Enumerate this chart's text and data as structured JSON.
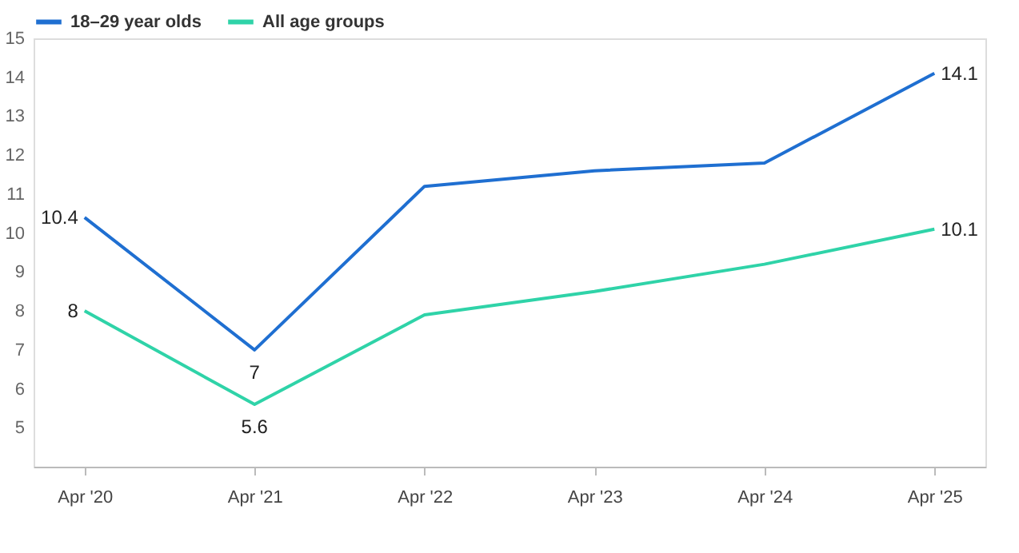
{
  "chart_data": {
    "type": "line",
    "categories": [
      "Apr '20",
      "Apr '21",
      "Apr '22",
      "Apr '23",
      "Apr '24",
      "Apr '25"
    ],
    "series": [
      {
        "name": "18–29 year olds",
        "color": "#1f6fd1",
        "values": [
          10.4,
          7,
          11.2,
          11.6,
          11.8,
          14.1
        ],
        "value_labels": [
          "10.4",
          "7",
          null,
          null,
          null,
          "14.1"
        ]
      },
      {
        "name": "All age groups",
        "color": "#2fd3a8",
        "values": [
          8,
          5.6,
          7.9,
          8.5,
          9.2,
          10.1
        ],
        "value_labels": [
          "8",
          "5.6",
          null,
          null,
          null,
          "10.1"
        ]
      }
    ],
    "ylim": [
      4,
      15
    ],
    "yticks": [
      5,
      6,
      7,
      8,
      9,
      10,
      11,
      12,
      13,
      14,
      15
    ],
    "grid": false,
    "legend": "top left",
    "marker": "none",
    "line_style": "solid"
  }
}
